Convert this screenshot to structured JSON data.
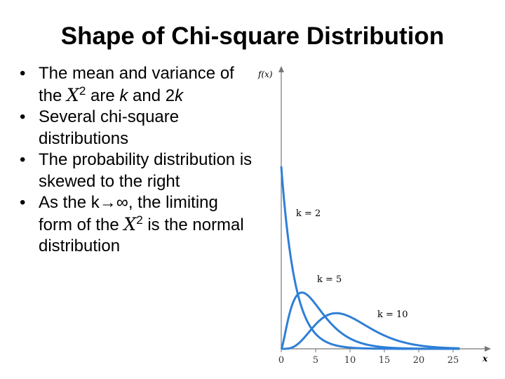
{
  "slide": {
    "title": "Shape of Chi-square Distribution",
    "bullets": [
      {
        "pre": "The mean and variance of the ",
        "chi": "X",
        "sup": "2",
        "mid": " are ",
        "k": "k",
        "and": " and 2",
        "k2": "k"
      },
      {
        "text": "Several chi-square distributions"
      },
      {
        "text": "The probability distribution is skewed to the right"
      },
      {
        "pre": "As the k→∞, the limiting form of the  ",
        "chi": "X",
        "sup": "2",
        "post": " is the normal distribution"
      }
    ]
  },
  "chart_data": {
    "type": "line",
    "ylabel": "f(x)",
    "xlabel": "x",
    "xlim": [
      0,
      30
    ],
    "xticks": [
      "0",
      "5",
      "10",
      "15",
      "20",
      "25"
    ],
    "series": [
      {
        "name": "k = 2",
        "k": 2
      },
      {
        "name": "k = 5",
        "k": 5
      },
      {
        "name": "k = 10",
        "k": 10
      }
    ],
    "line_color": "#2e7fd6"
  }
}
